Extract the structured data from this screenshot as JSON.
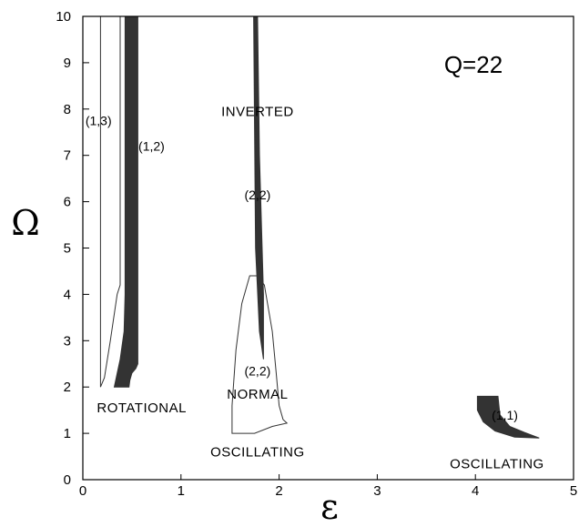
{
  "chart_data": {
    "type": "area",
    "xlabel": "ε",
    "ylabel": "Ω",
    "xlim": [
      0,
      5
    ],
    "ylim": [
      0,
      10
    ],
    "x_ticks": [
      "0",
      "1",
      "2",
      "3",
      "4",
      "5"
    ],
    "y_ticks": [
      "0",
      "1",
      "2",
      "3",
      "4",
      "5",
      "6",
      "7",
      "8",
      "9",
      "10"
    ],
    "annotation_q": "Q=22",
    "grid": false,
    "legend": "none",
    "regions": [
      {
        "label": "(1,3)",
        "fill": "none",
        "outline": [
          [
            0.18,
            10
          ],
          [
            0.38,
            10
          ],
          [
            0.38,
            5
          ],
          [
            0.38,
            4.2
          ],
          [
            0.35,
            4.0
          ],
          [
            0.28,
            3.0
          ],
          [
            0.22,
            2.2
          ],
          [
            0.18,
            2.0
          ],
          [
            0.18,
            10
          ]
        ]
      },
      {
        "label": "(1,2)",
        "fill": "#333333",
        "outline": [
          [
            0.43,
            10
          ],
          [
            0.56,
            10
          ],
          [
            0.56,
            2.5
          ],
          [
            0.54,
            2.4
          ],
          [
            0.5,
            2.3
          ],
          [
            0.48,
            2.15
          ],
          [
            0.47,
            2.0
          ],
          [
            0.32,
            2.0
          ],
          [
            0.38,
            2.6
          ],
          [
            0.42,
            3.2
          ],
          [
            0.43,
            4.0
          ],
          [
            0.43,
            10
          ]
        ]
      },
      {
        "label": "(2,2)",
        "fill": "#333333",
        "outline": [
          [
            1.74,
            10
          ],
          [
            1.78,
            10
          ],
          [
            1.8,
            7.0
          ],
          [
            1.84,
            4.0
          ],
          [
            1.84,
            2.6
          ],
          [
            1.8,
            3.2
          ],
          [
            1.76,
            5.0
          ],
          [
            1.74,
            10
          ]
        ]
      },
      {
        "label": "(2,2)",
        "fill": "none",
        "outline": [
          [
            1.7,
            4.4
          ],
          [
            1.78,
            4.4
          ],
          [
            1.85,
            4.2
          ],
          [
            1.93,
            3.2
          ],
          [
            1.97,
            2.3
          ],
          [
            2.0,
            1.6
          ],
          [
            2.04,
            1.3
          ],
          [
            2.08,
            1.22
          ],
          [
            1.93,
            1.15
          ],
          [
            1.75,
            1.0
          ],
          [
            1.52,
            1.0
          ],
          [
            1.52,
            1.6
          ],
          [
            1.56,
            2.8
          ],
          [
            1.62,
            3.8
          ],
          [
            1.7,
            4.4
          ]
        ]
      },
      {
        "label": "(1,1)",
        "fill": "#333333",
        "outline": [
          [
            4.02,
            1.8
          ],
          [
            4.23,
            1.8
          ],
          [
            4.25,
            1.4
          ],
          [
            4.35,
            1.15
          ],
          [
            4.5,
            1.02
          ],
          [
            4.65,
            0.9
          ],
          [
            4.4,
            0.92
          ],
          [
            4.2,
            1.05
          ],
          [
            4.08,
            1.25
          ],
          [
            4.02,
            1.5
          ],
          [
            4.02,
            1.8
          ]
        ]
      }
    ],
    "annotations": [
      {
        "text": "(1,3)",
        "x": 0.16,
        "y": 7.65
      },
      {
        "text": "(1,2)",
        "x": 0.7,
        "y": 7.1
      },
      {
        "text": "INVERTED",
        "x": 1.78,
        "y": 7.85
      },
      {
        "text": "(2,2)",
        "x": 1.78,
        "y": 6.05
      },
      {
        "text": "(2,2)",
        "x": 1.78,
        "y": 2.25
      },
      {
        "text": "NORMAL",
        "x": 1.78,
        "y": 1.75
      },
      {
        "text": "ROTATIONAL",
        "x": 0.6,
        "y": 1.45
      },
      {
        "text": "OSCILLATING",
        "x": 1.78,
        "y": 0.5
      },
      {
        "text": "(1,1)",
        "x": 4.3,
        "y": 1.3
      },
      {
        "text": "OSCILLATING",
        "x": 4.22,
        "y": 0.25
      }
    ]
  }
}
